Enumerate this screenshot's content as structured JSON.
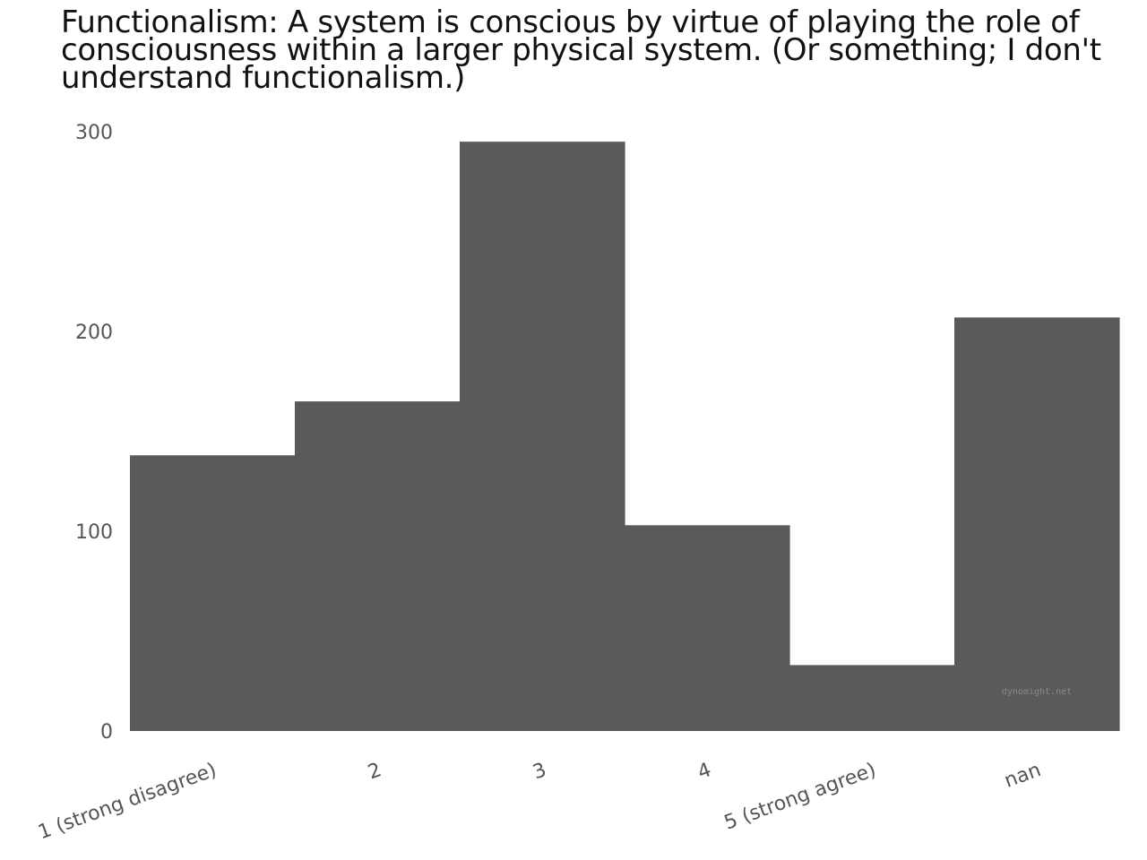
{
  "chart_data": {
    "type": "bar",
    "title": "Functionalism: A system is conscious by virtue of playing the role of consciousness within a larger physical system. (Or something; I don't understand functionalism.)",
    "categories": [
      "1 (strong disagree)",
      "2",
      "3",
      "4",
      "5 (strong agree)",
      "nan"
    ],
    "values": [
      138,
      165,
      295,
      103,
      33,
      207
    ],
    "ylim": [
      0,
      300
    ],
    "yticks": [
      0,
      100,
      200,
      300
    ],
    "xlabel": "",
    "ylabel": "",
    "grid": false,
    "bar_color": "#5a5a5a",
    "watermark": "dynomight.net"
  }
}
